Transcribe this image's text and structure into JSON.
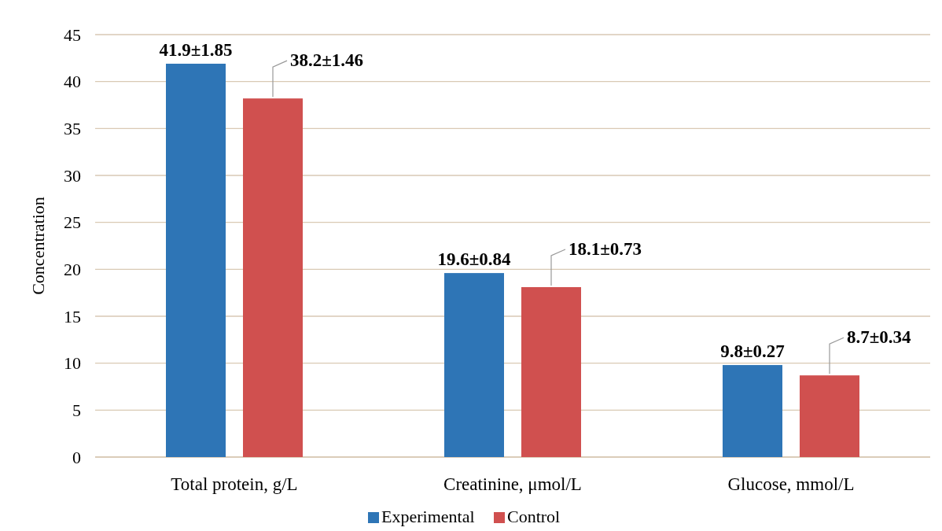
{
  "chart_data": {
    "type": "bar",
    "ylabel": "Concentration",
    "categories": [
      "Total protein, g/L",
      "Creatinine, μmol/L",
      "Glucose, mmol/L"
    ],
    "series": [
      {
        "name": "Experimental",
        "color": "#2e75b6",
        "values": [
          41.9,
          19.6,
          9.8
        ],
        "value_labels": [
          "41.9±1.85",
          "19.6±0.84",
          "9.8±0.27"
        ]
      },
      {
        "name": "Control",
        "color": "#d0504f",
        "values": [
          38.2,
          18.1,
          8.7
        ],
        "value_labels": [
          "38.2±1.46",
          "18.1±0.73",
          "8.7±0.34"
        ]
      }
    ],
    "ylim": [
      0,
      45
    ],
    "yticks": [
      0,
      5,
      10,
      15,
      20,
      25,
      30,
      35,
      40,
      45
    ],
    "grid": "y",
    "legend": "bottom"
  }
}
